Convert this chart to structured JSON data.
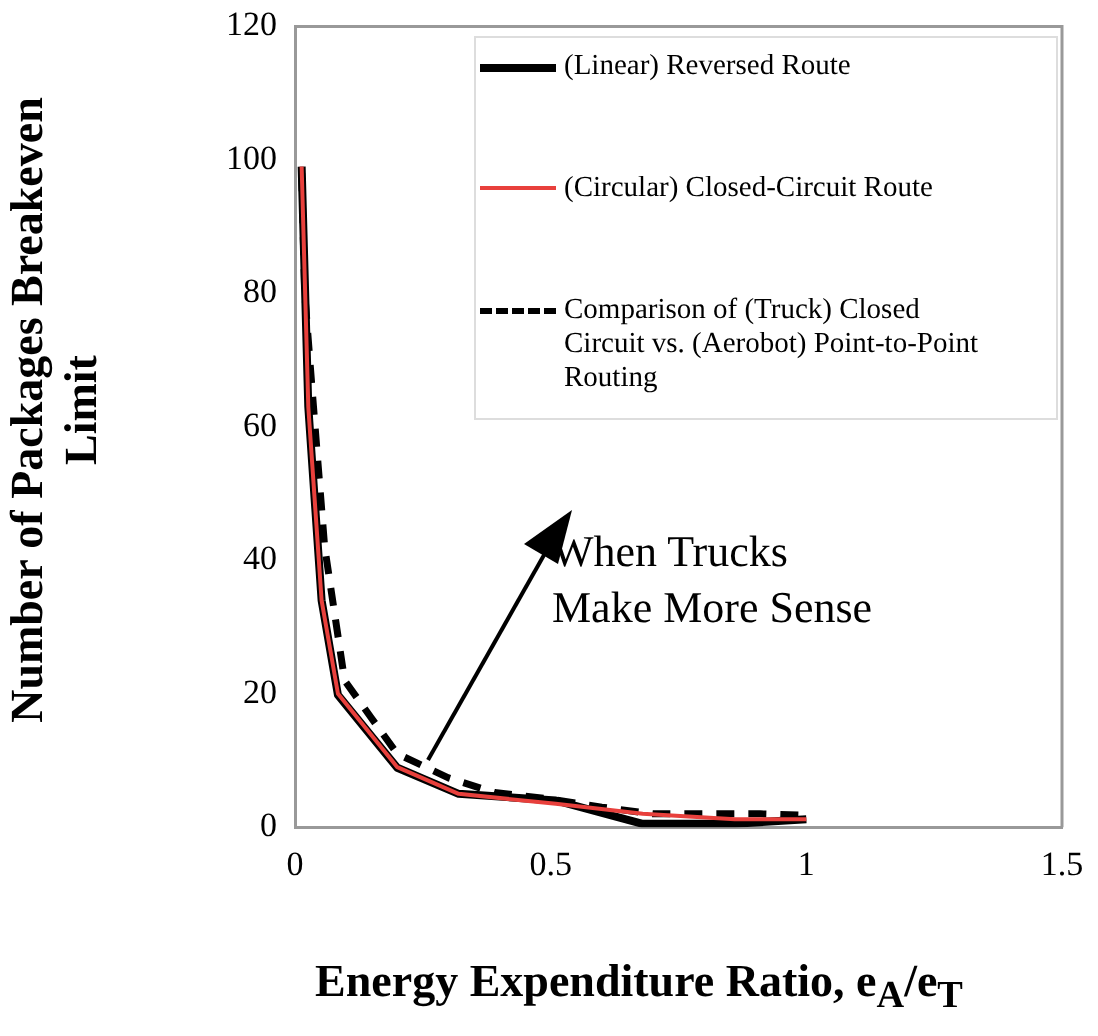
{
  "chart_data": {
    "type": "line",
    "xlabel": "Energy Expenditure Ratio, e$_{A}$/e$_{T}$",
    "ylabel": "Number of Packages Breakeven Limit",
    "xlim": [
      0,
      1.5
    ],
    "xticks": [
      0,
      0.5,
      1,
      1.5
    ],
    "ylim": [
      0,
      120
    ],
    "yticks": [
      0,
      20,
      40,
      60,
      80,
      100,
      120
    ],
    "grid": false,
    "legend": "top right",
    "marker": "none",
    "series": [
      {
        "name": "(Linear) Reversed Route",
        "color": "#000000",
        "line_style": "solid",
        "x": [
          0.013,
          0.026,
          0.052,
          0.084,
          0.2,
          0.32,
          0.51,
          0.68,
          0.86,
          1.0
        ],
        "values": [
          99,
          63,
          34,
          19.8,
          8.9,
          5,
          4,
          0.5,
          0.5,
          1.2
        ]
      },
      {
        "name": "(Circular) Closed-Circuit Route",
        "color": "#e8403c",
        "line_style": "solid",
        "x": [
          0.013,
          0.026,
          0.052,
          0.084,
          0.2,
          0.32,
          0.51,
          0.68,
          0.86,
          1.0
        ],
        "values": [
          99,
          63,
          34,
          20,
          9,
          5,
          3.5,
          2,
          1.2,
          1.2
        ]
      },
      {
        "name": "Comparison of (Truck) Closed Circuit vs. (Aerobot) Point-to-Point Routing",
        "color": "#000000",
        "line_style": "dashed",
        "x": [
          0.013,
          0.019,
          0.032,
          0.058,
          0.097,
          0.149,
          0.2,
          0.3,
          0.39,
          0.5,
          0.6,
          0.7,
          0.81,
          0.91,
          1.0
        ],
        "values": [
          98,
          80,
          67,
          42,
          22,
          16.4,
          11,
          7.4,
          5.2,
          4.2,
          3,
          2,
          2,
          2,
          1.8
        ]
      }
    ],
    "annotations": [
      {
        "text": "When Trucks Make More Sense",
        "x": 0.26,
        "y": 10
      }
    ]
  }
}
